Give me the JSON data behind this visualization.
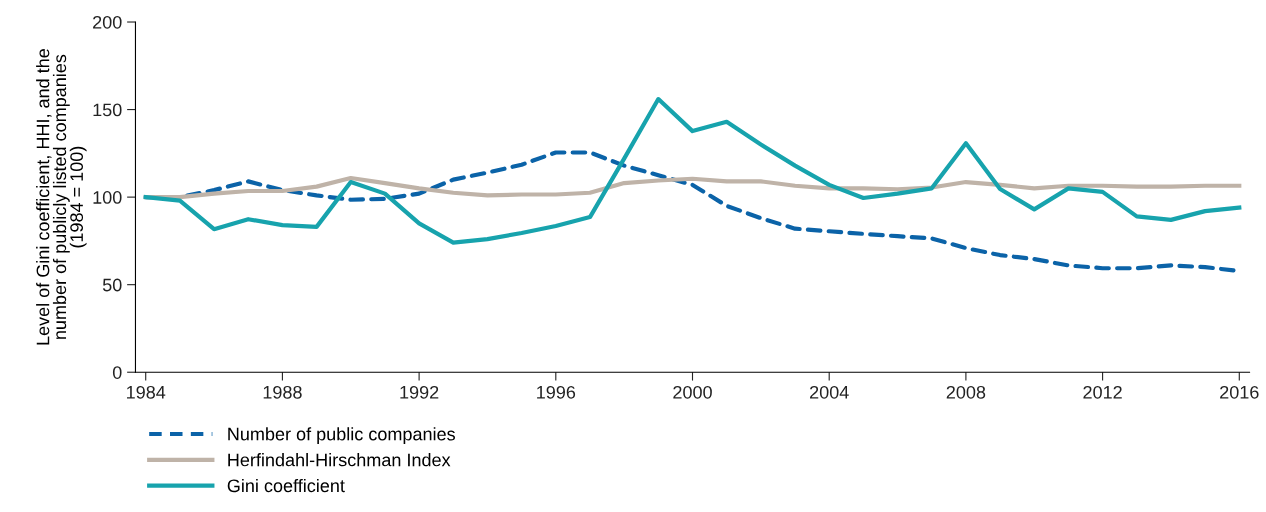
{
  "chart_data": {
    "type": "line",
    "ylabel": "Level of Gini coefficient, HHI, and the\nnumber of publicly listed companies\n(1984 = 100)",
    "x": [
      1984,
      1985,
      1986,
      1987,
      1988,
      1989,
      1990,
      1991,
      1992,
      1993,
      1994,
      1995,
      1996,
      1997,
      1998,
      1999,
      2000,
      2001,
      2002,
      2003,
      2004,
      2005,
      2006,
      2007,
      2008,
      2009,
      2010,
      2011,
      2012,
      2013,
      2014,
      2015,
      2016
    ],
    "series": [
      {
        "name": "Number of public companies",
        "color": "#0b63a8",
        "line_style": "dashed",
        "values": [
          100,
          100,
          104,
          109,
          104,
          101,
          98.5,
          99,
          102,
          110,
          114,
          118.5,
          125.5,
          125.5,
          118,
          112.5,
          107,
          95,
          88,
          82,
          80.5,
          79,
          77.7,
          76.4,
          70.9,
          66.9,
          64.6,
          61,
          59.4,
          59.4,
          61,
          60,
          57.8
        ]
      },
      {
        "name": "Herfindahl-Hirschman Index",
        "color": "#bfb3a8",
        "line_style": "solid",
        "values": [
          100,
          100,
          102,
          103.5,
          103.5,
          106,
          110.9,
          108,
          105,
          102.5,
          101,
          101.5,
          101.5,
          102.5,
          108,
          109.5,
          110.5,
          109,
          109,
          106.5,
          105,
          105,
          104.5,
          105.5,
          108.6,
          107,
          105,
          106.5,
          106.5,
          106,
          106,
          106.5,
          106.5
        ]
      },
      {
        "name": "Gini coefficient",
        "color": "#17a3ad",
        "line_style": "solid",
        "values": [
          100,
          98,
          81.7,
          87.4,
          84,
          83,
          108.6,
          102,
          85,
          74,
          76,
          79.5,
          83.5,
          88.6,
          122,
          156,
          137.7,
          143,
          130,
          118,
          107,
          99.5,
          102,
          105,
          130.8,
          104.6,
          93,
          105,
          103,
          89,
          87,
          92,
          94
        ]
      }
    ],
    "xlim": [
      1983.7,
      2016.3
    ],
    "xticks": [
      1984,
      1988,
      1992,
      1996,
      2000,
      2004,
      2008,
      2012,
      2016
    ],
    "ylim": [
      0,
      200
    ],
    "yticks": [
      0,
      50,
      100,
      150,
      200
    ],
    "grid": false,
    "legend": "bottom left",
    "marker": "none"
  }
}
